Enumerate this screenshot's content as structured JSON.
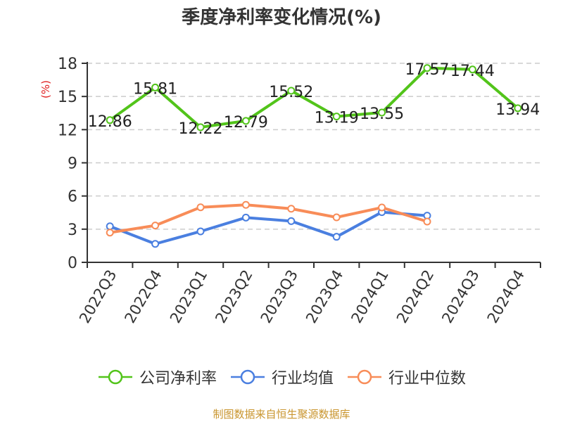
{
  "title": "季度净利率变化情况(%)",
  "y_unit": "(%)",
  "source": "制图数据来自恒生聚源数据库",
  "colors": {
    "company": "#52c41a",
    "industry_avg": "#4a7fe0",
    "industry_median": "#f88c58",
    "unit_label": "#e02020",
    "source": "#c9952e",
    "grid": "#cccccc",
    "axis": "#333333"
  },
  "legend": [
    {
      "label": "公司净利率",
      "color": "#52c41a"
    },
    {
      "label": "行业均值",
      "color": "#4a7fe0"
    },
    {
      "label": "行业中位数",
      "color": "#f88c58"
    }
  ],
  "chart_data": {
    "type": "line",
    "title": "季度净利率变化情况(%)",
    "xlabel": "",
    "ylabel": "(%)",
    "ylim": [
      0,
      18
    ],
    "yticks": [
      0,
      3,
      6,
      9,
      12,
      15,
      18
    ],
    "grid": true,
    "legend_position": "bottom",
    "categories": [
      "2022Q3",
      "2022Q4",
      "2023Q1",
      "2023Q2",
      "2023Q3",
      "2023Q4",
      "2024Q1",
      "2024Q2",
      "2024Q3",
      "2024Q4"
    ],
    "series": [
      {
        "name": "公司净利率",
        "values": [
          12.86,
          15.81,
          12.22,
          12.79,
          15.52,
          13.19,
          13.55,
          17.57,
          17.44,
          13.94
        ],
        "labels_shown": true
      },
      {
        "name": "行业均值",
        "values": [
          3.26,
          1.67,
          2.8,
          4.05,
          3.73,
          2.31,
          4.54,
          4.22,
          null,
          null
        ],
        "labels_shown": false
      },
      {
        "name": "行业中位数",
        "values": [
          2.69,
          3.33,
          4.98,
          5.2,
          4.85,
          4.07,
          4.96,
          3.69,
          null,
          null
        ],
        "labels_shown": false
      }
    ]
  }
}
